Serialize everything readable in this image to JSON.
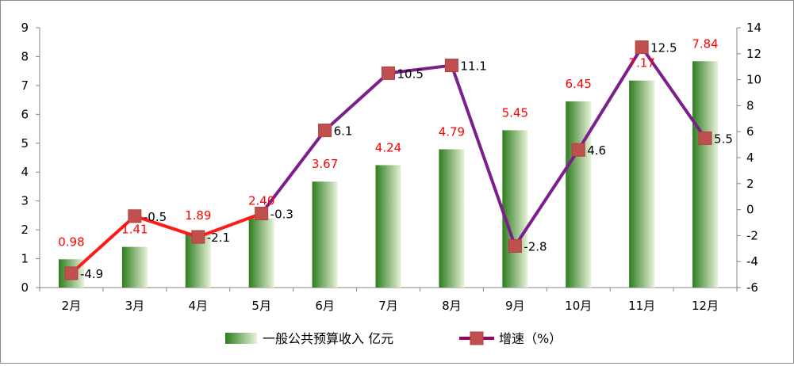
{
  "chart_data": {
    "type": "bar",
    "categories": [
      "2月",
      "3月",
      "4月",
      "5月",
      "6月",
      "7月",
      "8月",
      "9月",
      "10月",
      "11月",
      "12月"
    ],
    "series": [
      {
        "name": "一般公共预算收入 亿元",
        "type": "bar",
        "axis": "left",
        "values": [
          0.98,
          1.41,
          1.89,
          2.4,
          3.67,
          4.24,
          4.79,
          5.45,
          6.45,
          7.17,
          7.84
        ],
        "labels": [
          "0.98",
          "1.41",
          "1.89",
          "2.40",
          "3.67",
          "4.24",
          "4.79",
          "5.45",
          "6.45",
          "7.17",
          "7.84"
        ]
      },
      {
        "name": "增速（%）",
        "type": "line",
        "axis": "right",
        "values": [
          -4.9,
          -0.5,
          -2.1,
          -0.3,
          6.1,
          10.5,
          11.1,
          -2.8,
          4.6,
          12.5,
          5.5
        ],
        "labels": [
          "-4.9",
          "-0.5",
          "-2.1",
          "-0.3",
          "6.1",
          "10.5",
          "11.1",
          "-2.8",
          "4.6",
          "12.5",
          "5.5"
        ]
      }
    ],
    "ylim_left": [
      0,
      9
    ],
    "yticks_left": [
      0,
      1,
      2,
      3,
      4,
      5,
      6,
      7,
      8,
      9
    ],
    "ylim_right": [
      -6,
      14
    ],
    "yticks_right": [
      -6,
      -4,
      -2,
      0,
      2,
      4,
      6,
      8,
      10,
      12,
      14
    ],
    "grid": false,
    "legend_position": "bottom",
    "colors": {
      "bar_dark": "#2e7d1e",
      "bar_light": "#e8f2da",
      "line_negative": "#ff1a1a",
      "line_positive": "#7a1f8c",
      "marker_fill": "#c0504d",
      "bar_label": "#ff0000"
    }
  }
}
